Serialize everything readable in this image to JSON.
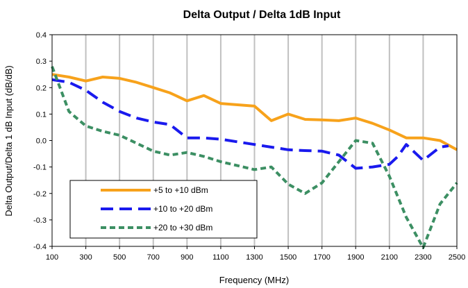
{
  "chart_data": {
    "type": "line",
    "title": "Delta Output / Delta 1dB Input",
    "xlabel": "Frequency (MHz)",
    "ylabel": "Delta Output/Delta 1 dB Input (dB/dB)",
    "xlim": [
      100,
      2500
    ],
    "ylim": [
      -0.4,
      0.4
    ],
    "x_ticks": [
      100,
      300,
      500,
      700,
      900,
      1100,
      1300,
      1500,
      1700,
      1900,
      2100,
      2300,
      2500
    ],
    "x_tick_labels": [
      "100",
      "300",
      "500",
      "700",
      "900",
      "1100",
      "1300",
      "1500",
      "1700",
      "1900",
      "2100",
      "2300",
      "2500"
    ],
    "y_ticks": [
      -0.4,
      -0.3,
      -0.2,
      -0.1,
      0.0,
      0.1,
      0.2,
      0.3,
      0.4
    ],
    "y_tick_labels": [
      "-0.4",
      "-0.3",
      "-0.2",
      "-0.1",
      "0.0",
      "0.1",
      "0.2",
      "0.3",
      "0.4"
    ],
    "grid": "vertical",
    "legend_position": "bottom-left",
    "series": [
      {
        "name": "+5 to +10 dBm",
        "color": "#F7A21B",
        "style": "solid",
        "x": [
          100,
          200,
          300,
          400,
          500,
          600,
          700,
          800,
          900,
          1000,
          1100,
          1200,
          1300,
          1400,
          1500,
          1600,
          1700,
          1800,
          1900,
          2000,
          2100,
          2200,
          2300,
          2400,
          2500
        ],
        "y": [
          0.25,
          0.24,
          0.225,
          0.24,
          0.235,
          0.22,
          0.2,
          0.18,
          0.15,
          0.17,
          0.14,
          0.135,
          0.13,
          0.075,
          0.1,
          0.08,
          0.078,
          0.075,
          0.085,
          0.065,
          0.04,
          0.01,
          0.01,
          0.0,
          -0.035
        ]
      },
      {
        "name": "+10 to +20 dBm",
        "color": "#1A1AEE",
        "style": "dashed",
        "x": [
          100,
          200,
          300,
          400,
          500,
          600,
          700,
          800,
          900,
          1000,
          1100,
          1200,
          1300,
          1400,
          1500,
          1600,
          1700,
          1800,
          1900,
          2000,
          2100,
          2150,
          2200,
          2250,
          2300,
          2400,
          2450
        ],
        "y": [
          0.23,
          0.22,
          0.19,
          0.145,
          0.11,
          0.085,
          0.07,
          0.06,
          0.01,
          0.01,
          0.005,
          -0.005,
          -0.015,
          -0.025,
          -0.035,
          -0.038,
          -0.04,
          -0.055,
          -0.105,
          -0.1,
          -0.09,
          -0.06,
          -0.015,
          -0.045,
          -0.075,
          -0.025,
          -0.02
        ]
      },
      {
        "name": "+20 to +30 dBm",
        "color": "#3C8F63",
        "style": "dotted",
        "x": [
          100,
          200,
          300,
          400,
          500,
          600,
          700,
          800,
          900,
          1000,
          1100,
          1200,
          1300,
          1400,
          1500,
          1600,
          1700,
          1800,
          1900,
          2000,
          2100,
          2200,
          2300,
          2400,
          2500
        ],
        "y": [
          0.28,
          0.11,
          0.055,
          0.035,
          0.02,
          -0.01,
          -0.04,
          -0.055,
          -0.045,
          -0.06,
          -0.08,
          -0.095,
          -0.11,
          -0.1,
          -0.165,
          -0.2,
          -0.16,
          -0.08,
          0.0,
          -0.01,
          -0.135,
          -0.29,
          -0.405,
          -0.24,
          -0.16
        ]
      }
    ]
  }
}
